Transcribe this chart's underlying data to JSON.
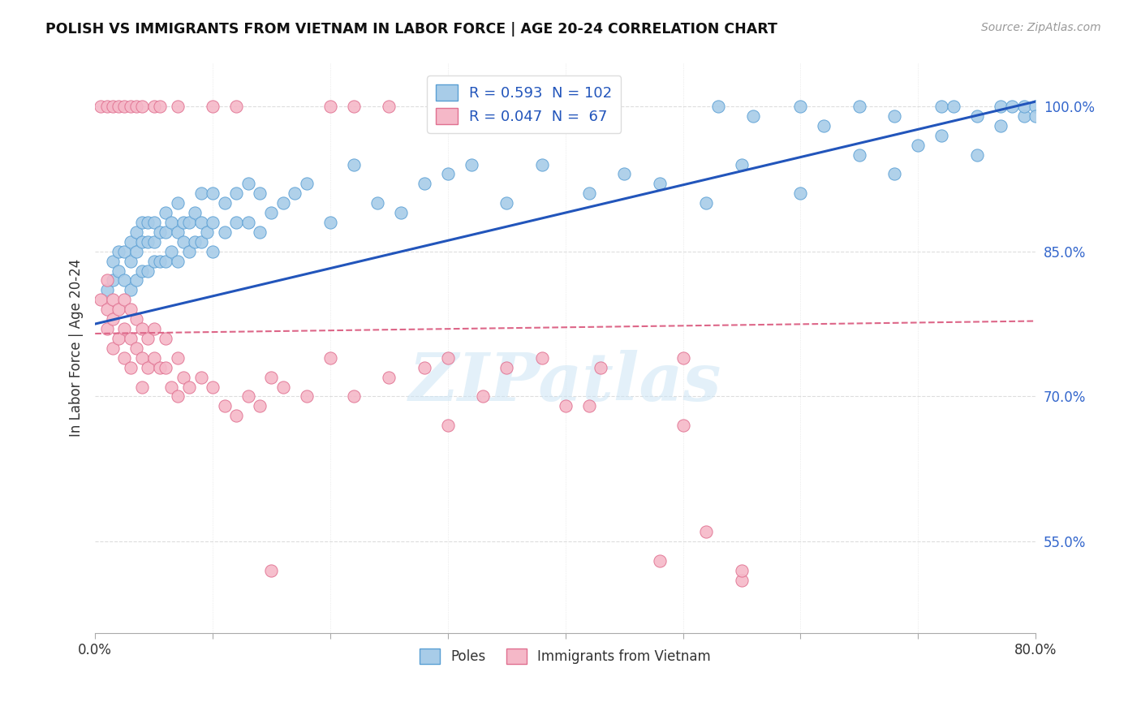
{
  "title": "POLISH VS IMMIGRANTS FROM VIETNAM IN LABOR FORCE | AGE 20-24 CORRELATION CHART",
  "source": "Source: ZipAtlas.com",
  "ylabel": "In Labor Force | Age 20-24",
  "x_min": 0.0,
  "x_max": 0.8,
  "y_min": 0.455,
  "y_max": 1.045,
  "y_ticks": [
    0.55,
    0.7,
    0.85,
    1.0
  ],
  "y_tick_labels": [
    "55.0%",
    "70.0%",
    "85.0%",
    "100.0%"
  ],
  "blue_color": "#a8cce8",
  "blue_edge_color": "#5a9fd4",
  "pink_color": "#f5b8c8",
  "pink_edge_color": "#e07090",
  "blue_line_color": "#2255bb",
  "pink_line_color": "#dd6688",
  "grid_color": "#dddddd",
  "title_color": "#111111",
  "right_tick_color": "#3366cc",
  "legend_R_blue": "0.593",
  "legend_N_blue": "102",
  "legend_R_pink": "0.047",
  "legend_N_pink": " 67",
  "watermark": "ZIPatlas",
  "blue_line_x0": 0.0,
  "blue_line_y0": 0.775,
  "blue_line_x1": 0.8,
  "blue_line_y1": 1.005,
  "pink_line_x0": 0.0,
  "pink_line_y0": 0.765,
  "pink_line_x1": 0.8,
  "pink_line_y1": 0.778,
  "blue_x": [
    0.01,
    0.015,
    0.015,
    0.02,
    0.02,
    0.025,
    0.025,
    0.03,
    0.03,
    0.03,
    0.035,
    0.035,
    0.035,
    0.04,
    0.04,
    0.04,
    0.045,
    0.045,
    0.045,
    0.05,
    0.05,
    0.05,
    0.055,
    0.055,
    0.06,
    0.06,
    0.06,
    0.065,
    0.065,
    0.07,
    0.07,
    0.07,
    0.075,
    0.075,
    0.08,
    0.08,
    0.085,
    0.085,
    0.09,
    0.09,
    0.09,
    0.095,
    0.1,
    0.1,
    0.1,
    0.11,
    0.11,
    0.12,
    0.12,
    0.13,
    0.13,
    0.14,
    0.14,
    0.15,
    0.16,
    0.17,
    0.18,
    0.2,
    0.22,
    0.24,
    0.26,
    0.28,
    0.3,
    0.32,
    0.35,
    0.38,
    0.42,
    0.45,
    0.48,
    0.52,
    0.55,
    0.6,
    0.65,
    0.68,
    0.7,
    0.72,
    0.75,
    0.77,
    0.79,
    0.79,
    0.8
  ],
  "blue_y": [
    0.81,
    0.82,
    0.84,
    0.83,
    0.85,
    0.82,
    0.85,
    0.81,
    0.84,
    0.86,
    0.82,
    0.85,
    0.87,
    0.83,
    0.86,
    0.88,
    0.83,
    0.86,
    0.88,
    0.84,
    0.86,
    0.88,
    0.84,
    0.87,
    0.84,
    0.87,
    0.89,
    0.85,
    0.88,
    0.84,
    0.87,
    0.9,
    0.86,
    0.88,
    0.85,
    0.88,
    0.86,
    0.89,
    0.86,
    0.88,
    0.91,
    0.87,
    0.85,
    0.88,
    0.91,
    0.87,
    0.9,
    0.88,
    0.91,
    0.88,
    0.92,
    0.87,
    0.91,
    0.89,
    0.9,
    0.91,
    0.92,
    0.88,
    0.94,
    0.9,
    0.89,
    0.92,
    0.93,
    0.94,
    0.9,
    0.94,
    0.91,
    0.93,
    0.92,
    0.9,
    0.94,
    0.91,
    0.95,
    0.93,
    0.96,
    0.97,
    0.95,
    0.98,
    0.99,
    1.0,
    1.0
  ],
  "pink_x": [
    0.005,
    0.01,
    0.01,
    0.01,
    0.015,
    0.015,
    0.015,
    0.02,
    0.02,
    0.025,
    0.025,
    0.025,
    0.03,
    0.03,
    0.03,
    0.035,
    0.035,
    0.04,
    0.04,
    0.04,
    0.045,
    0.045,
    0.05,
    0.05,
    0.055,
    0.06,
    0.06,
    0.065,
    0.07,
    0.07,
    0.075,
    0.08,
    0.09,
    0.1,
    0.11,
    0.12,
    0.13,
    0.14,
    0.15,
    0.16,
    0.18,
    0.2,
    0.22,
    0.25,
    0.28,
    0.3,
    0.33,
    0.35,
    0.38,
    0.4,
    0.43,
    0.48,
    0.5,
    0.55
  ],
  "pink_y": [
    0.8,
    0.79,
    0.82,
    0.77,
    0.8,
    0.78,
    0.75,
    0.79,
    0.76,
    0.8,
    0.77,
    0.74,
    0.79,
    0.76,
    0.73,
    0.78,
    0.75,
    0.77,
    0.74,
    0.71,
    0.76,
    0.73,
    0.77,
    0.74,
    0.73,
    0.76,
    0.73,
    0.71,
    0.74,
    0.7,
    0.72,
    0.71,
    0.72,
    0.71,
    0.69,
    0.68,
    0.7,
    0.69,
    0.72,
    0.71,
    0.7,
    0.74,
    0.7,
    0.72,
    0.73,
    0.74,
    0.7,
    0.73,
    0.74,
    0.69,
    0.73,
    0.53,
    0.74,
    0.51
  ],
  "pink_low_x": [
    0.15,
    0.3,
    0.42,
    0.5,
    0.52,
    0.55
  ],
  "pink_low_y": [
    0.52,
    0.67,
    0.69,
    0.67,
    0.56,
    0.52
  ],
  "top_blue_x": [
    0.53,
    0.56,
    0.6,
    0.62,
    0.65,
    0.68,
    0.72,
    0.73,
    0.75,
    0.77,
    0.78,
    0.8
  ],
  "top_blue_y": [
    1.0,
    0.99,
    1.0,
    0.98,
    1.0,
    0.99,
    1.0,
    1.0,
    0.99,
    1.0,
    1.0,
    0.99
  ],
  "top_pink_x": [
    0.005,
    0.01,
    0.015,
    0.02,
    0.025,
    0.03,
    0.035,
    0.04,
    0.05,
    0.055,
    0.07,
    0.1,
    0.12,
    0.2,
    0.22,
    0.25
  ],
  "top_pink_y": [
    1.0,
    1.0,
    1.0,
    1.0,
    1.0,
    1.0,
    1.0,
    1.0,
    1.0,
    1.0,
    1.0,
    1.0,
    1.0,
    1.0,
    1.0,
    1.0
  ]
}
